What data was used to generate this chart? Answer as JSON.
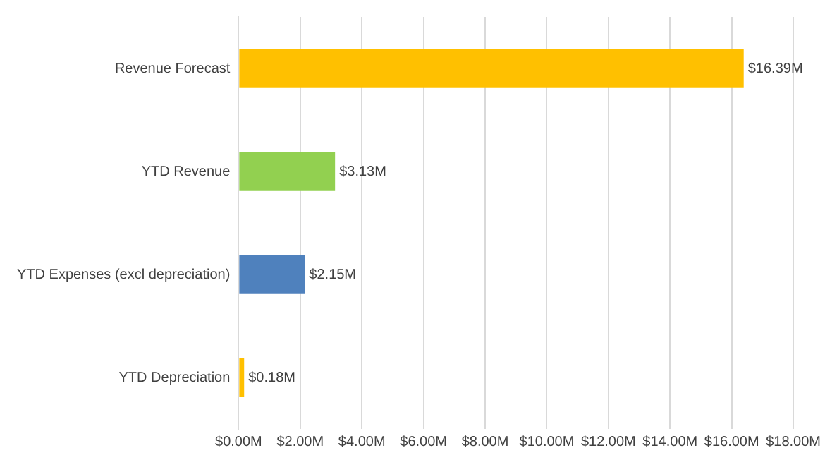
{
  "chart_data": {
    "type": "bar",
    "orientation": "horizontal",
    "categories": [
      "Revenue Forecast",
      "YTD Revenue",
      "YTD Expenses (excl depreciation)",
      "YTD Depreciation"
    ],
    "values": [
      16.39,
      3.13,
      2.15,
      0.18
    ],
    "colors": [
      "#ffc000",
      "#92d050",
      "#4f81bd",
      "#ffc000"
    ],
    "value_labels": [
      "$16.39M",
      "$3.13M",
      "$2.15M",
      "$0.18M"
    ],
    "xlim": [
      0,
      18
    ],
    "xticks": [
      {
        "value": 0,
        "label": "$0.00M"
      },
      {
        "value": 2,
        "label": "$2.00M"
      },
      {
        "value": 4,
        "label": "$4.00M"
      },
      {
        "value": 6,
        "label": "$6.00M"
      },
      {
        "value": 8,
        "label": "$8.00M"
      },
      {
        "value": 10,
        "label": "$10.00M"
      },
      {
        "value": 12,
        "label": "$12.00M"
      },
      {
        "value": 14,
        "label": "$14.00M"
      },
      {
        "value": 16,
        "label": "$16.00M"
      },
      {
        "value": 18,
        "label": "$18.00M"
      }
    ],
    "grid": "x",
    "legend": false
  }
}
